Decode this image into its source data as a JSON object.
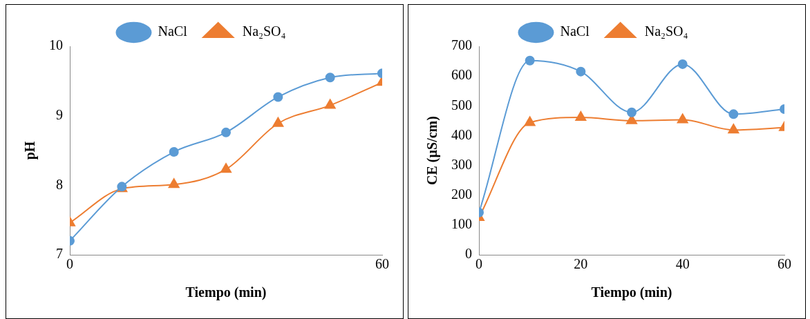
{
  "chart_data": [
    {
      "type": "line",
      "xlabel": "Tiempo (min)",
      "ylabel": "pH",
      "x": [
        0,
        10,
        20,
        30,
        40,
        50,
        60
      ],
      "xlim": [
        0,
        60
      ],
      "xticks": [
        0,
        60
      ],
      "ylim": [
        7,
        10
      ],
      "yticks": [
        7,
        8,
        9,
        10
      ],
      "grid": false,
      "legend": "top",
      "series": [
        {
          "name": "NaCl",
          "color": "#5b9bd5",
          "marker": "circle",
          "values": [
            7.2,
            7.98,
            8.48,
            8.76,
            9.27,
            9.55,
            9.61
          ]
        },
        {
          "name": "Na₂SO₄",
          "color": "#ed7d31",
          "marker": "triangle",
          "values": [
            7.46,
            7.95,
            8.01,
            8.23,
            8.89,
            9.15,
            9.48
          ]
        }
      ]
    },
    {
      "type": "line",
      "xlabel": "Tiempo (min)",
      "ylabel": "CE (µS/cm)",
      "x": [
        0,
        10,
        20,
        30,
        40,
        50,
        60
      ],
      "xlim": [
        0,
        60
      ],
      "xticks": [
        0,
        20,
        40,
        60
      ],
      "ylim": [
        0,
        700
      ],
      "yticks": [
        0,
        100,
        200,
        300,
        400,
        500,
        600,
        700
      ],
      "grid": false,
      "legend": "top",
      "series": [
        {
          "name": "NaCl",
          "color": "#5b9bd5",
          "marker": "circle",
          "values": [
            142,
            652,
            615,
            478,
            640,
            472,
            489
          ]
        },
        {
          "name": "Na₂SO₄",
          "color": "#ed7d31",
          "marker": "triangle",
          "values": [
            125,
            444,
            461,
            450,
            453,
            419,
            427
          ]
        }
      ]
    }
  ]
}
